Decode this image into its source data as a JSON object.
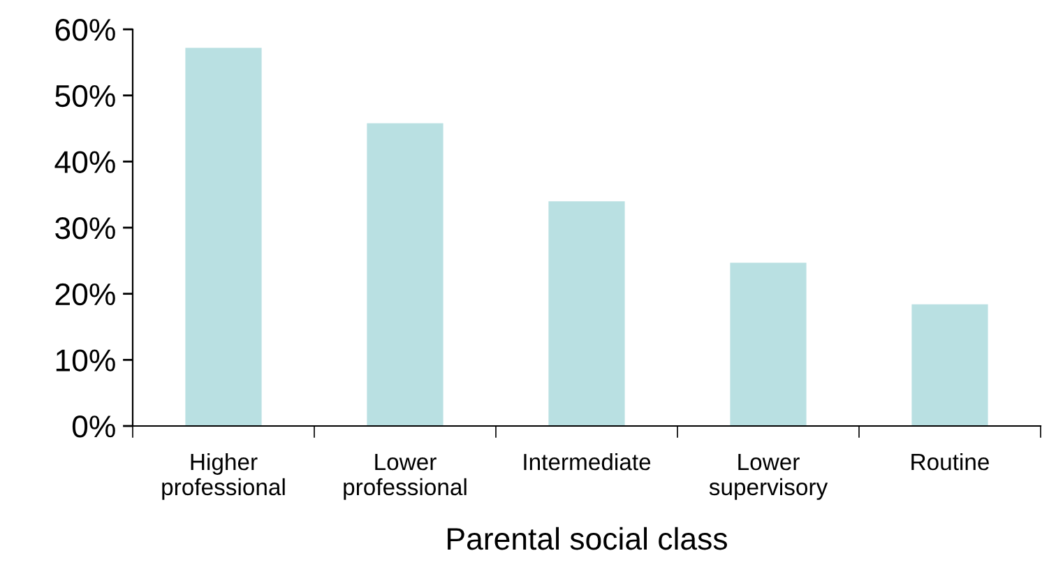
{
  "chart_data": {
    "type": "bar",
    "xlabel": "Parental social class",
    "categories": [
      "Higher\nprofessional",
      "Lower\nprofessional",
      "Intermediate",
      "Lower\nsupervisory",
      "Routine"
    ],
    "values": [
      57.2,
      45.8,
      34.0,
      24.7,
      18.4
    ],
    "color": "#b9e0e2",
    "ylim": [
      0,
      60
    ],
    "yticks": [
      {
        "value": 0,
        "label": "0%"
      },
      {
        "value": 10,
        "label": "10%"
      },
      {
        "value": 20,
        "label": "20%"
      },
      {
        "value": 30,
        "label": "30%"
      },
      {
        "value": 40,
        "label": "40%"
      },
      {
        "value": 50,
        "label": "50%"
      },
      {
        "value": 60,
        "label": "60%"
      }
    ],
    "grid": false
  }
}
